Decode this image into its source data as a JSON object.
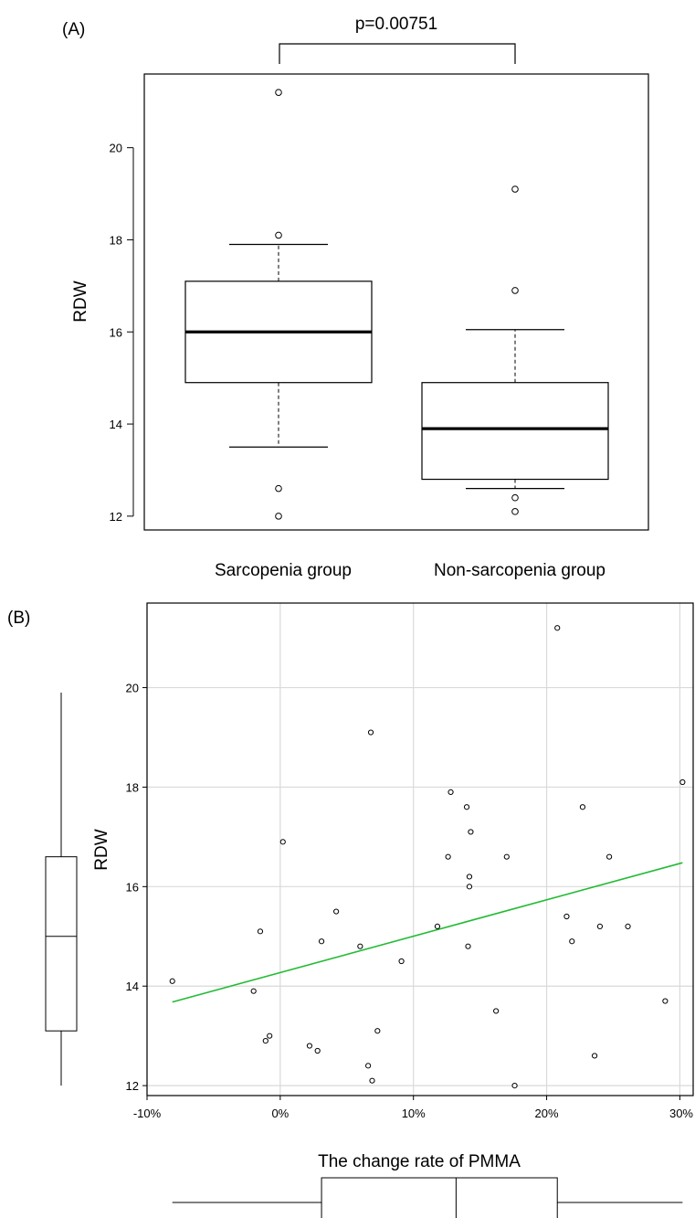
{
  "colors": {
    "fit_line": "#22bb33",
    "grid": "#d9d9d9",
    "ink": "#000000"
  },
  "chart_data": [
    {
      "panel_label": "(A)",
      "type": "boxplot",
      "annotation": "p=0.00751",
      "ylabel": "RDW",
      "ylim": [
        11.7,
        21.6
      ],
      "yticks": [
        12,
        14,
        16,
        18,
        20
      ],
      "ytick_labels": [
        "12",
        "14",
        "16",
        "18",
        "20"
      ],
      "categories": [
        "Sarcopenia group",
        "Non-sarcopenia group"
      ],
      "boxes": [
        {
          "name": "Sarcopenia group",
          "whisker_low": 13.5,
          "q1": 14.9,
          "median": 16.0,
          "q3": 17.1,
          "whisker_high": 17.9,
          "outliers": [
            21.2,
            18.1,
            12.6,
            12.0
          ]
        },
        {
          "name": "Non-sarcopenia group",
          "whisker_low": 12.6,
          "q1": 12.8,
          "median": 13.9,
          "q3": 14.9,
          "whisker_high": 16.05,
          "outliers": [
            19.1,
            16.9,
            12.4,
            12.1
          ]
        }
      ]
    },
    {
      "panel_label": "(B)",
      "type": "scatter",
      "xlabel": "The change rate of PMMA",
      "ylabel": "RDW",
      "xlim": [
        -10,
        31
      ],
      "ylim": [
        11.8,
        21.7
      ],
      "xticks": [
        -10,
        0,
        10,
        20,
        30
      ],
      "xtick_labels": [
        "-10%",
        "0%",
        "10%",
        "20%",
        "30%"
      ],
      "yticks": [
        12,
        14,
        16,
        18,
        20
      ],
      "ytick_labels": [
        "12",
        "14",
        "16",
        "18",
        "20"
      ],
      "grid": true,
      "points": [
        [
          -8.1,
          14.1
        ],
        [
          -2.0,
          13.9
        ],
        [
          -1.5,
          15.1
        ],
        [
          -1.1,
          12.9
        ],
        [
          -0.8,
          13.0
        ],
        [
          0.2,
          16.9
        ],
        [
          2.2,
          12.8
        ],
        [
          2.8,
          12.7
        ],
        [
          3.1,
          14.9
        ],
        [
          4.2,
          15.5
        ],
        [
          6.0,
          14.8
        ],
        [
          6.6,
          12.4
        ],
        [
          6.8,
          19.1
        ],
        [
          6.9,
          12.1
        ],
        [
          7.3,
          13.1
        ],
        [
          9.1,
          14.5
        ],
        [
          11.8,
          15.2
        ],
        [
          12.6,
          16.6
        ],
        [
          12.8,
          17.9
        ],
        [
          14.0,
          17.6
        ],
        [
          14.1,
          14.8
        ],
        [
          14.2,
          16.2
        ],
        [
          14.2,
          16.0
        ],
        [
          14.3,
          17.1
        ],
        [
          16.2,
          13.5
        ],
        [
          17.0,
          16.6
        ],
        [
          17.6,
          12.0
        ],
        [
          20.8,
          21.2
        ],
        [
          21.5,
          15.4
        ],
        [
          21.9,
          14.9
        ],
        [
          22.7,
          17.6
        ],
        [
          23.6,
          12.6
        ],
        [
          24.0,
          15.2
        ],
        [
          24.7,
          16.6
        ],
        [
          26.1,
          15.2
        ],
        [
          28.9,
          13.7
        ],
        [
          30.2,
          18.1
        ]
      ],
      "fit_line": {
        "x": [
          -8.1,
          30.2
        ],
        "y": [
          13.68,
          16.48
        ]
      },
      "marginal_y_box": {
        "whisker_low": 12.0,
        "q1": 13.1,
        "median": 15.0,
        "q3": 16.6,
        "whisker_high": 19.9
      },
      "marginal_x_box": {
        "whisker_low": -8.1,
        "q1": 3.1,
        "median": 13.2,
        "q3": 20.8,
        "whisker_high": 30.2
      }
    }
  ]
}
